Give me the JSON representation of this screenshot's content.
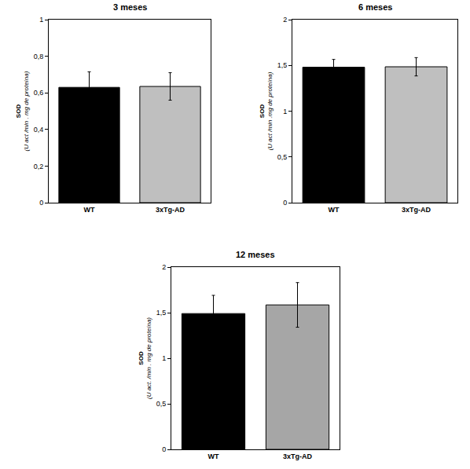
{
  "chart_data": [
    {
      "type": "bar",
      "title": "3 meses",
      "categories": [
        "WT",
        "3xTg-AD"
      ],
      "values": [
        0.63,
        0.635
      ],
      "error": [
        0.085,
        0.075
      ],
      "colors": [
        "#000000",
        "#bfbfbf"
      ],
      "ylabel": [
        "SOD",
        "(U act /min . mg de proteína)"
      ],
      "ylim": [
        0,
        1
      ],
      "yticks": [
        0,
        {
          "value": 0.2,
          "label": "0,2"
        },
        {
          "value": 0.4,
          "label": "0,4"
        },
        {
          "value": 0.6,
          "label": "0,6"
        },
        {
          "value": 0.8,
          "label": "0,8"
        },
        1
      ]
    },
    {
      "type": "bar",
      "title": "6 meses",
      "categories": [
        "WT",
        "3xTg-AD"
      ],
      "values": [
        1.48,
        1.485
      ],
      "error": [
        0.085,
        0.1
      ],
      "colors": [
        "#000000",
        "#bfbfbf"
      ],
      "ylabel": [
        "SOD",
        "(U act /min .mg de proteína)"
      ],
      "ylim": [
        0,
        2
      ],
      "yticks": [
        0,
        {
          "value": 0.5,
          "label": "0,5"
        },
        1,
        {
          "value": 1.5,
          "label": "1,5"
        },
        2
      ]
    },
    {
      "type": "bar",
      "title": "12 meses",
      "categories": [
        "WT",
        "3xTg-AD"
      ],
      "values": [
        1.49,
        1.585
      ],
      "error": [
        0.2,
        0.245
      ],
      "colors": [
        "#000000",
        "#a6a6a6"
      ],
      "ylabel": [
        "SOD",
        "(U act. /min . mg de proteína)"
      ],
      "ylim": [
        0,
        2
      ],
      "yticks": [
        0,
        {
          "value": 0.5,
          "label": "0,5"
        },
        1,
        {
          "value": 1.5,
          "label": "1,5"
        },
        2
      ]
    }
  ]
}
